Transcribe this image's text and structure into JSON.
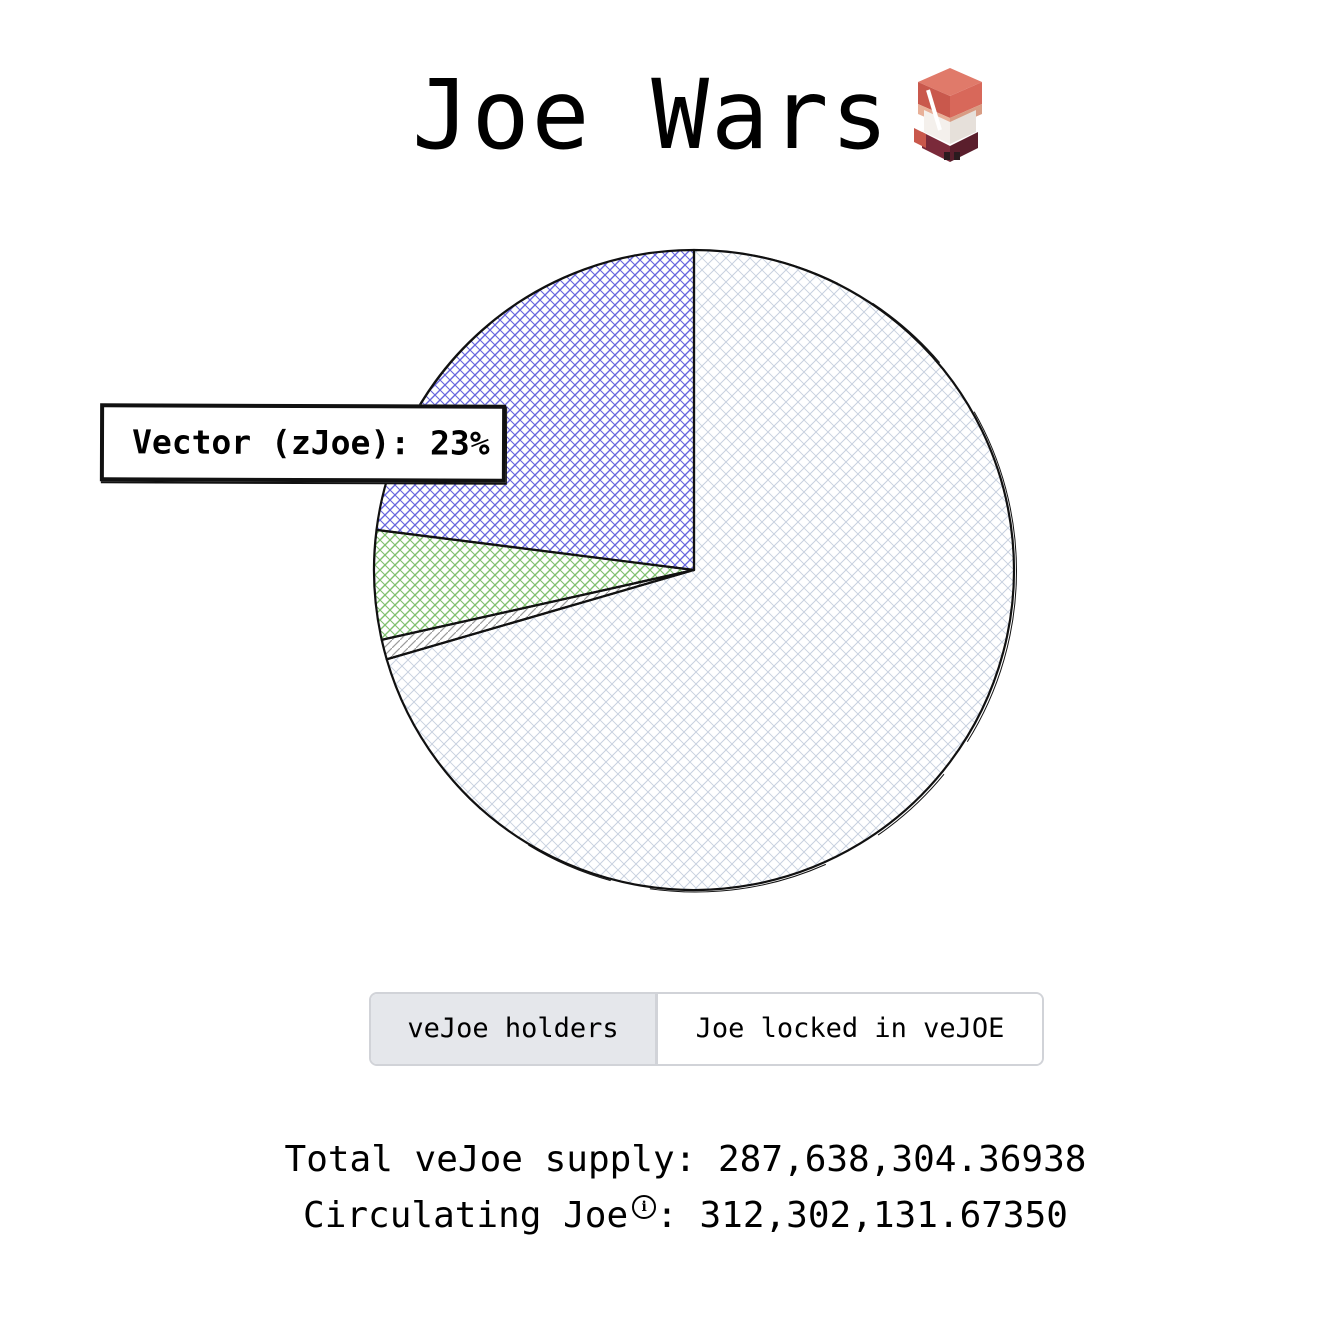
{
  "header": {
    "title": "Joe Wars",
    "mascot_icon": "dwarf-mascot-icon"
  },
  "chart_data": {
    "type": "pie",
    "style": "hand-drawn hatched",
    "start_angle_deg": 0,
    "direction": "counterclockwise",
    "slices": [
      {
        "label": "Vector (zJoe)",
        "value": 23,
        "color": "#6666dd"
      },
      {
        "label": "",
        "value": 5.5,
        "color": "#7fbf6f"
      },
      {
        "label": "",
        "value": 1,
        "color": "#b0b0b0"
      },
      {
        "label": "",
        "value": 70.5,
        "color": "#c7d0df"
      }
    ],
    "tooltip": {
      "text": "Vector (zJoe): 23%"
    }
  },
  "toggle": {
    "options": [
      "veJoe holders",
      "Joe locked in veJOE"
    ],
    "selected": "veJoe holders"
  },
  "stats": {
    "total_label": "Total veJoe supply: ",
    "total_value": "287,638,304.36938",
    "circulating_label": "Circulating Joe",
    "circulating_info_icon": "info-icon",
    "circulating_info_glyph": "i",
    "circulating_value": ": 312,302,131.67350"
  }
}
